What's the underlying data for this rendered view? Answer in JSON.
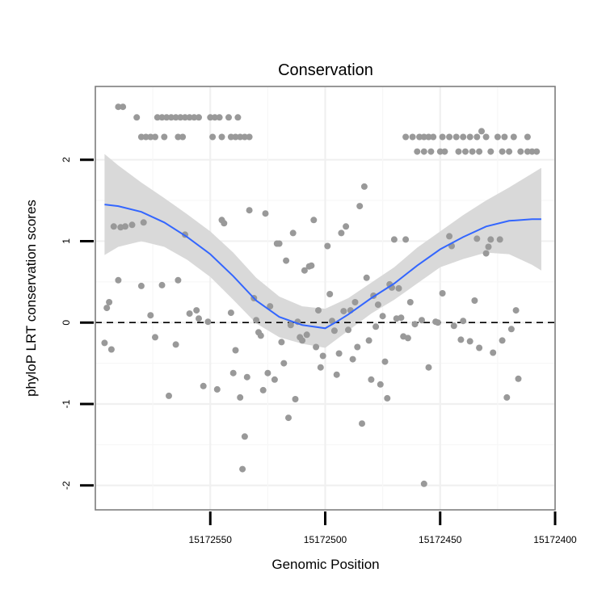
{
  "chart_data": {
    "type": "scatter",
    "title": "Conservation",
    "xlabel": "Genomic Position",
    "ylabel": "phyloP LRT conservation scores",
    "x_reversed": true,
    "xlim": [
      15172400,
      15172600
    ],
    "ylim": [
      -2.3,
      2.9
    ],
    "xticks": [
      15172550,
      15172500,
      15172450,
      15172400
    ],
    "yticks": [
      -2,
      -1,
      0,
      1,
      2
    ],
    "reference_line": {
      "y": 0,
      "style": "dashed"
    },
    "colors": {
      "points": "#999999",
      "smooth": "#3366ff",
      "band": "#d9d9d9"
    },
    "points": [
      [
        15172590,
        2.65
      ],
      [
        15172588,
        2.65
      ],
      [
        15172582,
        2.52
      ],
      [
        15172580,
        2.28
      ],
      [
        15172578,
        2.28
      ],
      [
        15172576,
        2.28
      ],
      [
        15172574,
        2.28
      ],
      [
        15172571,
        2.52
      ],
      [
        15172569,
        2.52
      ],
      [
        15172567,
        2.52
      ],
      [
        15172565,
        2.52
      ],
      [
        15172563,
        2.52
      ],
      [
        15172561,
        2.52
      ],
      [
        15172559,
        2.52
      ],
      [
        15172557,
        2.52
      ],
      [
        15172555,
        2.52
      ],
      [
        15172573,
        2.52
      ],
      [
        15172570,
        2.28
      ],
      [
        15172564,
        2.28
      ],
      [
        15172562,
        2.28
      ],
      [
        15172550,
        2.52
      ],
      [
        15172548,
        2.52
      ],
      [
        15172546,
        2.52
      ],
      [
        15172542,
        2.52
      ],
      [
        15172538,
        2.52
      ],
      [
        15172549,
        2.28
      ],
      [
        15172545,
        2.28
      ],
      [
        15172541,
        2.28
      ],
      [
        15172539,
        2.28
      ],
      [
        15172537,
        2.28
      ],
      [
        15172535,
        2.28
      ],
      [
        15172533,
        2.28
      ],
      [
        15172465,
        2.28
      ],
      [
        15172462,
        2.28
      ],
      [
        15172459,
        2.28
      ],
      [
        15172457,
        2.28
      ],
      [
        15172455,
        2.28
      ],
      [
        15172453,
        2.28
      ],
      [
        15172449,
        2.28
      ],
      [
        15172446,
        2.28
      ],
      [
        15172443,
        2.28
      ],
      [
        15172440,
        2.28
      ],
      [
        15172437,
        2.28
      ],
      [
        15172434,
        2.28
      ],
      [
        15172430,
        2.28
      ],
      [
        15172425,
        2.28
      ],
      [
        15172422,
        2.28
      ],
      [
        15172418,
        2.28
      ],
      [
        15172412,
        2.28
      ],
      [
        15172432,
        2.35
      ],
      [
        15172460,
        2.1
      ],
      [
        15172457,
        2.1
      ],
      [
        15172454,
        2.1
      ],
      [
        15172450,
        2.1
      ],
      [
        15172448,
        2.1
      ],
      [
        15172442,
        2.1
      ],
      [
        15172439,
        2.1
      ],
      [
        15172436,
        2.1
      ],
      [
        15172433,
        2.1
      ],
      [
        15172428,
        2.1
      ],
      [
        15172423,
        2.1
      ],
      [
        15172420,
        2.1
      ],
      [
        15172415,
        2.1
      ],
      [
        15172412,
        2.1
      ],
      [
        15172410,
        2.1
      ],
      [
        15172408,
        2.1
      ],
      [
        15172596,
        -0.25
      ],
      [
        15172594,
        0.25
      ],
      [
        15172593,
        -0.33
      ],
      [
        15172592,
        1.18
      ],
      [
        15172590,
        0.52
      ],
      [
        15172589,
        1.17
      ],
      [
        15172587,
        1.18
      ],
      [
        15172584,
        1.2
      ],
      [
        15172595,
        0.18
      ],
      [
        15172579,
        1.23
      ],
      [
        15172576,
        0.09
      ],
      [
        15172574,
        -0.18
      ],
      [
        15172580,
        0.45
      ],
      [
        15172571,
        0.46
      ],
      [
        15172568,
        -0.9
      ],
      [
        15172565,
        -0.27
      ],
      [
        15172564,
        0.52
      ],
      [
        15172561,
        1.08
      ],
      [
        15172559,
        0.11
      ],
      [
        15172556,
        0.15
      ],
      [
        15172555,
        0.05
      ],
      [
        15172553,
        -0.78
      ],
      [
        15172551,
        0.01
      ],
      [
        15172547,
        -0.82
      ],
      [
        15172545,
        1.26
      ],
      [
        15172544,
        1.22
      ],
      [
        15172541,
        0.12
      ],
      [
        15172540,
        -0.62
      ],
      [
        15172539,
        -0.34
      ],
      [
        15172537,
        -0.92
      ],
      [
        15172536,
        -1.8
      ],
      [
        15172535,
        -1.4
      ],
      [
        15172534,
        -0.67
      ],
      [
        15172533,
        1.38
      ],
      [
        15172531,
        0.3
      ],
      [
        15172530,
        0.03
      ],
      [
        15172529,
        -0.12
      ],
      [
        15172528,
        -0.16
      ],
      [
        15172527,
        -0.83
      ],
      [
        15172526,
        1.34
      ],
      [
        15172525,
        -0.62
      ],
      [
        15172524,
        0.2
      ],
      [
        15172522,
        -0.7
      ],
      [
        15172521,
        0.97
      ],
      [
        15172520,
        0.97
      ],
      [
        15172519,
        -0.24
      ],
      [
        15172518,
        -0.5
      ],
      [
        15172517,
        0.76
      ],
      [
        15172516,
        -1.17
      ],
      [
        15172515,
        -0.03
      ],
      [
        15172514,
        1.1
      ],
      [
        15172513,
        -0.94
      ],
      [
        15172512,
        0.01
      ],
      [
        15172511,
        -0.18
      ],
      [
        15172510,
        -0.22
      ],
      [
        15172509,
        0.64
      ],
      [
        15172508,
        -0.15
      ],
      [
        15172507,
        0.69
      ],
      [
        15172506,
        0.7
      ],
      [
        15172505,
        1.26
      ],
      [
        15172504,
        -0.3
      ],
      [
        15172503,
        0.15
      ],
      [
        15172502,
        -0.55
      ],
      [
        15172501,
        -0.41
      ],
      [
        15172499,
        0.94
      ],
      [
        15172498,
        0.35
      ],
      [
        15172497,
        0.02
      ],
      [
        15172496,
        -0.1
      ],
      [
        15172495,
        -0.64
      ],
      [
        15172494,
        -0.38
      ],
      [
        15172493,
        1.1
      ],
      [
        15172492,
        0.14
      ],
      [
        15172491,
        1.18
      ],
      [
        15172490,
        -0.09
      ],
      [
        15172489,
        0.15
      ],
      [
        15172488,
        -0.45
      ],
      [
        15172487,
        0.25
      ],
      [
        15172486,
        -0.3
      ],
      [
        15172485,
        1.43
      ],
      [
        15172484,
        -1.24
      ],
      [
        15172483,
        1.67
      ],
      [
        15172482,
        0.55
      ],
      [
        15172481,
        -0.22
      ],
      [
        15172480,
        -0.7
      ],
      [
        15172479,
        0.33
      ],
      [
        15172478,
        -0.05
      ],
      [
        15172477,
        0.22
      ],
      [
        15172476,
        -0.76
      ],
      [
        15172475,
        0.08
      ],
      [
        15172474,
        -0.48
      ],
      [
        15172473,
        -0.93
      ],
      [
        15172472,
        0.47
      ],
      [
        15172471,
        0.43
      ],
      [
        15172470,
        1.02
      ],
      [
        15172469,
        0.05
      ],
      [
        15172468,
        0.42
      ],
      [
        15172467,
        0.06
      ],
      [
        15172466,
        -0.17
      ],
      [
        15172465,
        1.02
      ],
      [
        15172464,
        -0.19
      ],
      [
        15172463,
        0.25
      ],
      [
        15172461,
        -0.02
      ],
      [
        15172458,
        0.03
      ],
      [
        15172457,
        -1.98
      ],
      [
        15172455,
        -0.55
      ],
      [
        15172452,
        0.01
      ],
      [
        15172451,
        0.0
      ],
      [
        15172449,
        0.36
      ],
      [
        15172446,
        1.06
      ],
      [
        15172445,
        0.94
      ],
      [
        15172444,
        -0.04
      ],
      [
        15172441,
        -0.21
      ],
      [
        15172440,
        0.02
      ],
      [
        15172437,
        -0.23
      ],
      [
        15172435,
        0.27
      ],
      [
        15172434,
        1.03
      ],
      [
        15172433,
        -0.31
      ],
      [
        15172430,
        0.85
      ],
      [
        15172429,
        0.93
      ],
      [
        15172428,
        1.02
      ],
      [
        15172427,
        -0.37
      ],
      [
        15172424,
        1.02
      ],
      [
        15172423,
        -0.22
      ],
      [
        15172421,
        -0.92
      ],
      [
        15172419,
        -0.08
      ],
      [
        15172417,
        0.15
      ],
      [
        15172416,
        -0.69
      ]
    ],
    "smooth": [
      [
        15172596,
        1.45
      ],
      [
        15172590,
        1.43
      ],
      [
        15172580,
        1.36
      ],
      [
        15172570,
        1.23
      ],
      [
        15172560,
        1.05
      ],
      [
        15172550,
        0.84
      ],
      [
        15172540,
        0.57
      ],
      [
        15172530,
        0.27
      ],
      [
        15172520,
        0.07
      ],
      [
        15172510,
        -0.03
      ],
      [
        15172500,
        -0.07
      ],
      [
        15172495,
        0.01
      ],
      [
        15172490,
        0.1
      ],
      [
        15172480,
        0.3
      ],
      [
        15172470,
        0.48
      ],
      [
        15172460,
        0.7
      ],
      [
        15172450,
        0.9
      ],
      [
        15172440,
        1.05
      ],
      [
        15172430,
        1.18
      ],
      [
        15172420,
        1.25
      ],
      [
        15172410,
        1.27
      ],
      [
        15172406,
        1.27
      ]
    ],
    "band_upper": [
      [
        15172596,
        2.07
      ],
      [
        15172590,
        1.93
      ],
      [
        15172580,
        1.72
      ],
      [
        15172570,
        1.53
      ],
      [
        15172560,
        1.33
      ],
      [
        15172550,
        1.12
      ],
      [
        15172540,
        0.86
      ],
      [
        15172530,
        0.55
      ],
      [
        15172520,
        0.32
      ],
      [
        15172510,
        0.2
      ],
      [
        15172500,
        0.17
      ],
      [
        15172490,
        0.3
      ],
      [
        15172480,
        0.49
      ],
      [
        15172470,
        0.68
      ],
      [
        15172460,
        0.92
      ],
      [
        15172450,
        1.12
      ],
      [
        15172440,
        1.32
      ],
      [
        15172430,
        1.5
      ],
      [
        15172420,
        1.66
      ],
      [
        15172410,
        1.83
      ],
      [
        15172406,
        1.9
      ]
    ],
    "band_lower": [
      [
        15172596,
        0.83
      ],
      [
        15172590,
        0.93
      ],
      [
        15172580,
        1.0
      ],
      [
        15172570,
        0.93
      ],
      [
        15172560,
        0.77
      ],
      [
        15172550,
        0.56
      ],
      [
        15172540,
        0.28
      ],
      [
        15172530,
        -0.01
      ],
      [
        15172520,
        -0.18
      ],
      [
        15172510,
        -0.26
      ],
      [
        15172500,
        -0.31
      ],
      [
        15172490,
        -0.1
      ],
      [
        15172480,
        0.11
      ],
      [
        15172470,
        0.28
      ],
      [
        15172460,
        0.48
      ],
      [
        15172450,
        0.68
      ],
      [
        15172440,
        0.78
      ],
      [
        15172430,
        0.86
      ],
      [
        15172420,
        0.84
      ],
      [
        15172410,
        0.71
      ],
      [
        15172406,
        0.64
      ]
    ]
  }
}
